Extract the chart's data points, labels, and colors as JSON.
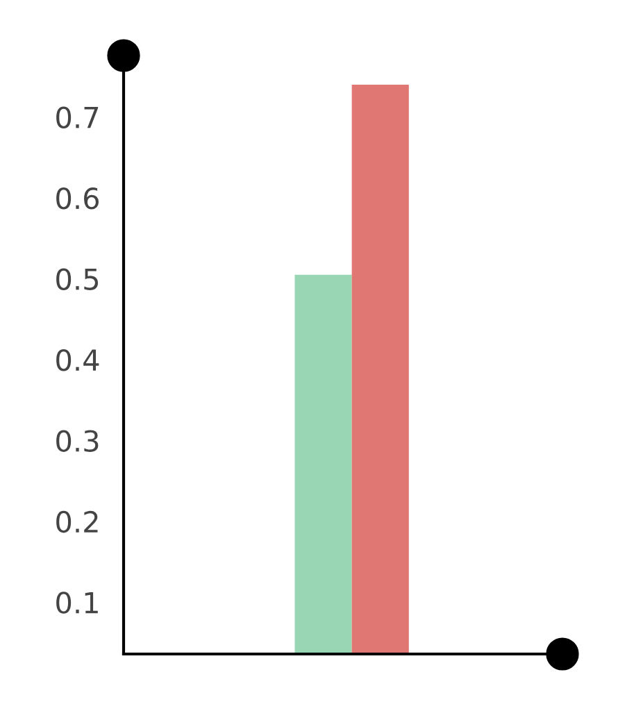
{
  "chart_data": {
    "type": "bar",
    "categories": [
      null
    ],
    "series": [
      {
        "color": "#98d6b4",
        "values": [
          0.505
        ]
      },
      {
        "color": "#e07773",
        "values": [
          0.74
        ]
      }
    ],
    "ylim": [
      0.036,
      0.776
    ],
    "yticks": [
      0.1,
      0.2,
      0.3,
      0.4,
      0.5,
      0.6,
      0.7
    ],
    "grid": false,
    "legend": false
  }
}
